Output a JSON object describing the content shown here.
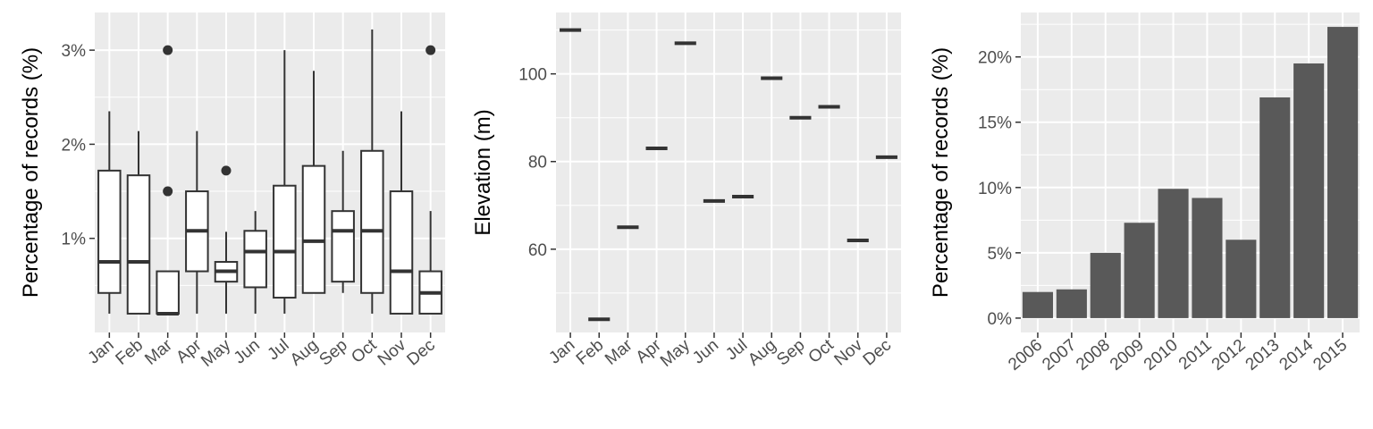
{
  "chart_data": [
    {
      "type": "boxplot",
      "ylabel": "Percentage of records (%)",
      "xlabel": "",
      "categories": [
        "Jan",
        "Feb",
        "Mar",
        "Apr",
        "May",
        "Jun",
        "Jul",
        "Aug",
        "Sep",
        "Oct",
        "Nov",
        "Dec"
      ],
      "ylim": [
        0.0,
        3.4
      ],
      "yticks": [
        1,
        2,
        3
      ],
      "ytick_labels": [
        "1%",
        "2%",
        "3%"
      ],
      "boxes": [
        {
          "low": 0.2,
          "q1": 0.42,
          "median": 0.75,
          "q3": 1.72,
          "high": 2.35,
          "outliers": []
        },
        {
          "low": 0.2,
          "q1": 0.2,
          "median": 0.75,
          "q3": 1.67,
          "high": 2.14,
          "outliers": []
        },
        {
          "low": 0.2,
          "q1": 0.2,
          "median": 0.2,
          "q3": 0.65,
          "high": 0.65,
          "outliers": [
            1.5,
            3.0
          ]
        },
        {
          "low": 0.2,
          "q1": 0.65,
          "median": 1.08,
          "q3": 1.5,
          "high": 2.14,
          "outliers": []
        },
        {
          "low": 0.2,
          "q1": 0.54,
          "median": 0.65,
          "q3": 0.75,
          "high": 1.07,
          "outliers": [
            1.72
          ]
        },
        {
          "low": 0.2,
          "q1": 0.48,
          "median": 0.86,
          "q3": 1.08,
          "high": 1.29,
          "outliers": []
        },
        {
          "low": 0.2,
          "q1": 0.37,
          "median": 0.86,
          "q3": 1.56,
          "high": 3.0,
          "outliers": []
        },
        {
          "low": 0.42,
          "q1": 0.42,
          "median": 0.97,
          "q3": 1.77,
          "high": 2.78,
          "outliers": []
        },
        {
          "low": 0.42,
          "q1": 0.54,
          "median": 1.08,
          "q3": 1.29,
          "high": 1.93,
          "outliers": []
        },
        {
          "low": 0.2,
          "q1": 0.42,
          "median": 1.08,
          "q3": 1.93,
          "high": 3.22,
          "outliers": []
        },
        {
          "low": 0.2,
          "q1": 0.2,
          "median": 0.65,
          "q3": 1.5,
          "high": 2.35,
          "outliers": []
        },
        {
          "low": 0.2,
          "q1": 0.2,
          "median": 0.42,
          "q3": 0.65,
          "high": 1.29,
          "outliers": [
            3.0
          ]
        }
      ]
    },
    {
      "type": "boxplot",
      "ylabel": "Elevation (m)",
      "xlabel": "",
      "categories": [
        "Jan",
        "Feb",
        "Mar",
        "Apr",
        "May",
        "Jun",
        "Jul",
        "Aug",
        "Sep",
        "Oct",
        "Nov",
        "Dec"
      ],
      "ylim": [
        41,
        114
      ],
      "yticks": [
        60,
        80,
        100
      ],
      "ytick_labels": [
        "60",
        "80",
        "100"
      ],
      "values": [
        110,
        44,
        65,
        83,
        107,
        71,
        72,
        99,
        90,
        92.5,
        62,
        81
      ]
    },
    {
      "type": "bar",
      "ylabel": "Percentage of records (%)",
      "xlabel": "",
      "categories": [
        "2006",
        "2007",
        "2008",
        "2009",
        "2010",
        "2011",
        "2012",
        "2013",
        "2014",
        "2015"
      ],
      "values": [
        2.0,
        2.2,
        5.0,
        7.3,
        9.9,
        9.2,
        6.0,
        16.9,
        19.5,
        22.3
      ],
      "ylim": [
        -1.1,
        23.4
      ],
      "yticks": [
        0,
        5,
        10,
        15,
        20
      ],
      "ytick_labels": [
        "0%",
        "5%",
        "10%",
        "15%",
        "20%"
      ],
      "bar_color": "#595959"
    }
  ],
  "style": {
    "panel_bg": "#ebebeb",
    "grid_color": "#ffffff",
    "mark_color": "#333333",
    "tick_color": "#333333"
  }
}
